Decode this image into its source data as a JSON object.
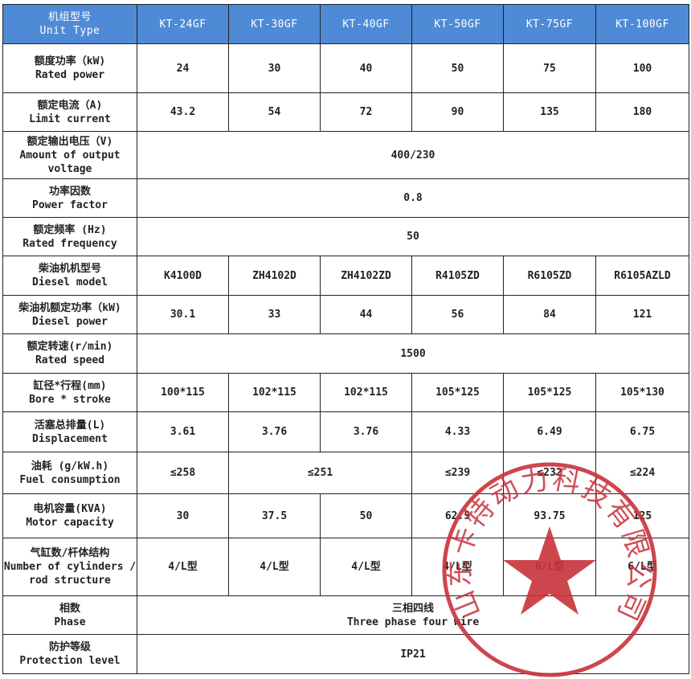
{
  "header": {
    "label_cn": "机组型号",
    "label_en": "Unit Type",
    "models": [
      "KT-24GF",
      "KT-30GF",
      "KT-40GF",
      "KT-50GF",
      "KT-75GF",
      "KT-100GF"
    ]
  },
  "rows": [
    {
      "cn": "额度功率（kW)",
      "en": "Rated power",
      "cells": [
        {
          "v": "24"
        },
        {
          "v": "30"
        },
        {
          "v": "40"
        },
        {
          "v": "50"
        },
        {
          "v": "75"
        },
        {
          "v": "100"
        }
      ]
    },
    {
      "cn": "额定电流（A)",
      "en": "Limit current",
      "cells": [
        {
          "v": "43.2"
        },
        {
          "v": "54"
        },
        {
          "v": "72"
        },
        {
          "v": "90"
        },
        {
          "v": "135"
        },
        {
          "v": "180"
        }
      ]
    },
    {
      "cn": "额定输出电压（V)",
      "en": "Amount of output voltage",
      "cells": [
        {
          "v": "400/230",
          "span": 6
        }
      ]
    },
    {
      "cn": "功率因数",
      "en": "Power factor",
      "cells": [
        {
          "v": "0.8",
          "span": 6
        }
      ]
    },
    {
      "cn": "额定频率 (Hz)",
      "en": "Rated frequency",
      "cells": [
        {
          "v": "50",
          "span": 6
        }
      ]
    },
    {
      "cn": "柴油机机型号",
      "en": "Diesel model",
      "cells": [
        {
          "v": "K4100D"
        },
        {
          "v": "ZH4102D"
        },
        {
          "v": "ZH4102ZD"
        },
        {
          "v": "R4105ZD"
        },
        {
          "v": "R6105ZD"
        },
        {
          "v": "R6105AZLD"
        }
      ]
    },
    {
      "cn": "柴油机额定功率（kW)",
      "en": "Diesel power",
      "cells": [
        {
          "v": "30.1"
        },
        {
          "v": "33"
        },
        {
          "v": "44"
        },
        {
          "v": "56"
        },
        {
          "v": "84"
        },
        {
          "v": "121"
        }
      ]
    },
    {
      "cn": "额定转速(r/min)",
      "en": "Rated speed",
      "cells": [
        {
          "v": "1500",
          "span": 6
        }
      ]
    },
    {
      "cn": "缸径*行程(mm)",
      "en": "Bore * stroke",
      "cells": [
        {
          "v": "100*115"
        },
        {
          "v": "102*115"
        },
        {
          "v": "102*115"
        },
        {
          "v": "105*125"
        },
        {
          "v": "105*125"
        },
        {
          "v": "105*130"
        }
      ]
    },
    {
      "cn": "活塞总排量(L)",
      "en": "Displacement",
      "cells": [
        {
          "v": "3.61"
        },
        {
          "v": "3.76"
        },
        {
          "v": "3.76"
        },
        {
          "v": "4.33"
        },
        {
          "v": "6.49"
        },
        {
          "v": "6.75"
        }
      ]
    },
    {
      "cn": "油耗 (g/kW.h)",
      "en": "Fuel consumption",
      "cells": [
        {
          "v": "≤258"
        },
        {
          "v": "≤251",
          "span": 2
        },
        {
          "v": "≤239"
        },
        {
          "v": "≤232"
        },
        {
          "v": "≤224"
        }
      ]
    },
    {
      "cn": "电机容量(KVA)",
      "en": "Motor capacity",
      "cells": [
        {
          "v": "30"
        },
        {
          "v": "37.5"
        },
        {
          "v": "50"
        },
        {
          "v": "62.5"
        },
        {
          "v": "93.75"
        },
        {
          "v": "125"
        }
      ]
    },
    {
      "cn": "气缸数/杆体结构",
      "en": "Number of cylinders / rod structure",
      "cells": [
        {
          "v": "4/L型"
        },
        {
          "v": "4/L型"
        },
        {
          "v": "4/L型"
        },
        {
          "v": "4/L型"
        },
        {
          "v": "6/L型"
        },
        {
          "v": "6/L型"
        }
      ]
    },
    {
      "cn": "相数",
      "en": "Phase",
      "cells": [
        {
          "v": "三相四线",
          "v2": "Three phase four wire",
          "span": 6
        }
      ]
    },
    {
      "cn": "防护等级",
      "en": "Protection level",
      "cells": [
        {
          "v": "IP21",
          "span": 6
        }
      ]
    }
  ],
  "stamp": {
    "text": "山东卡特动力科技有限公司",
    "color": "#c8323a",
    "icon": "star-icon"
  },
  "colors": {
    "header_bg": "#4f8ad6"
  }
}
